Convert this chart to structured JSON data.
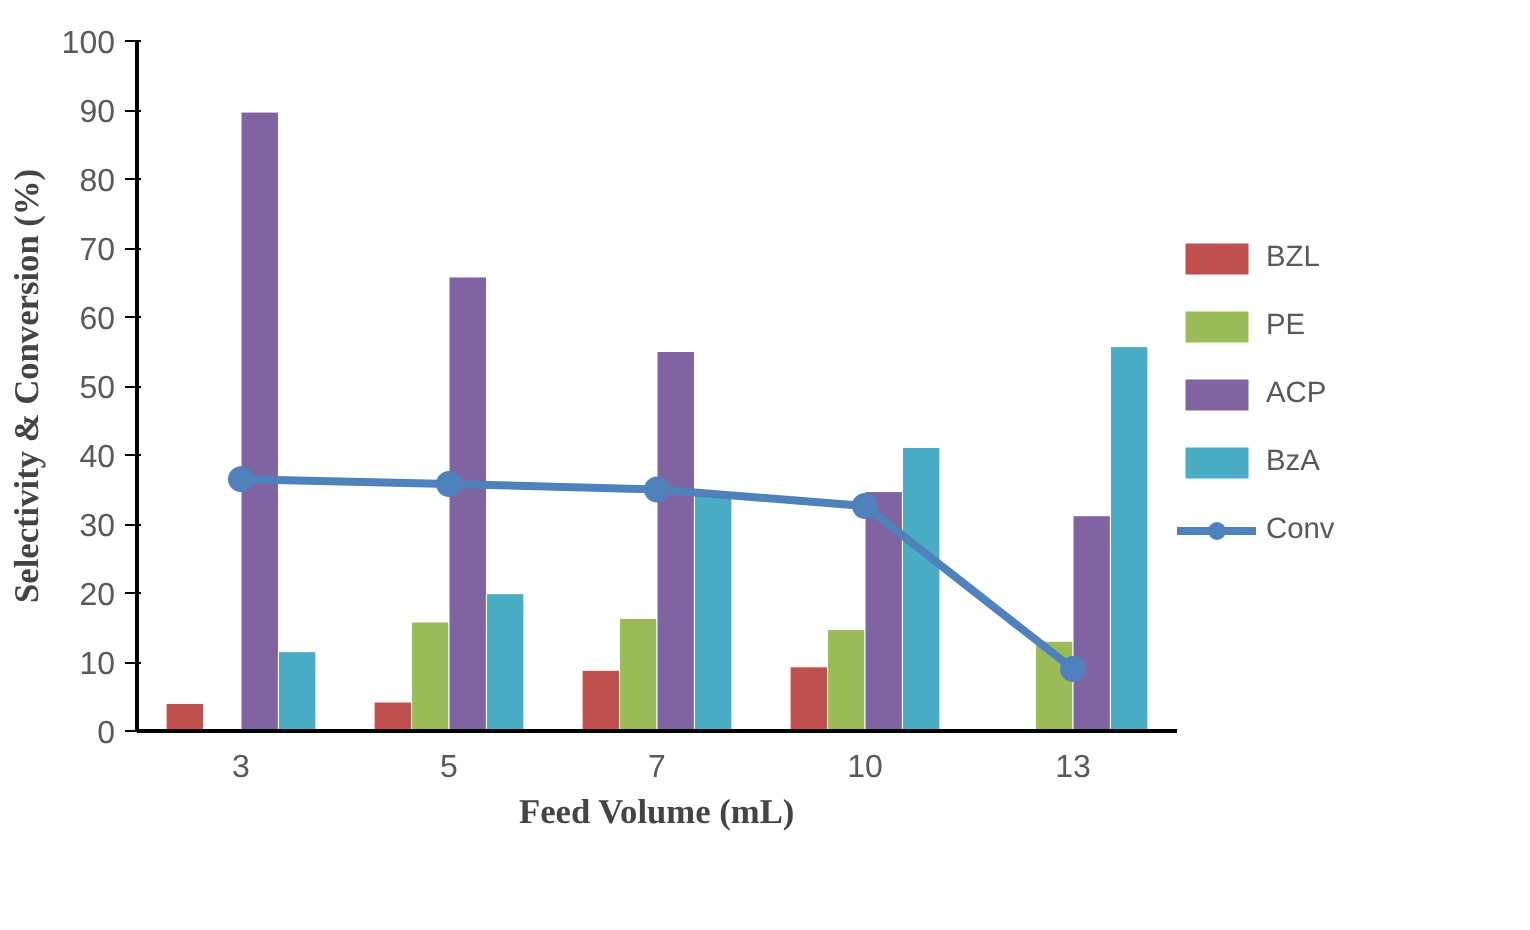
{
  "chart_data": {
    "type": "bar",
    "xlabel": "Feed Volume (mL)",
    "ylabel": "Selectivity & Conversion (%)",
    "categories": [
      "3",
      "5",
      "7",
      "10",
      "13"
    ],
    "series": [
      {
        "name": "BZL",
        "color": "#c0504d",
        "values": [
          4,
          4.2,
          8.8,
          9.3,
          null
        ]
      },
      {
        "name": "PE",
        "color": "#9bbb59",
        "values": [
          null,
          15.8,
          16.3,
          14.7,
          13
        ]
      },
      {
        "name": "ACP",
        "color": "#8064a2",
        "values": [
          89.7,
          65.8,
          55,
          34.7,
          31.2
        ]
      },
      {
        "name": "BzA",
        "color": "#4bacc6",
        "values": [
          11.5,
          19.9,
          34.5,
          41.1,
          55.7
        ]
      },
      {
        "name": "Conv",
        "color": "#4f81bd",
        "type": "line",
        "marker": "circle",
        "values": [
          36.5,
          35.8,
          35,
          32.6,
          9
        ]
      }
    ],
    "ylim": [
      0,
      100
    ],
    "yticks": [
      0,
      10,
      20,
      30,
      40,
      50,
      60,
      70,
      80,
      90,
      100
    ],
    "grid": false,
    "legend": "right"
  }
}
